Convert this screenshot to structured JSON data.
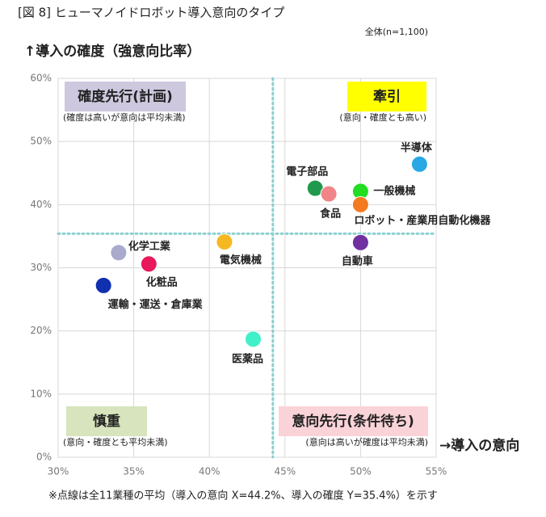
{
  "chart_data": {
    "type": "scatter",
    "title": "[図 8] ヒューマノイドロボット導入意向のタイプ",
    "subtitle": "全体(n=1,100)",
    "y_label": "↑導入の確度（強意向比率）",
    "x_label": "→導入の意向",
    "footnote": "※点線は全11業種の平均（導入の意向 X=44.2%、導入の確度 Y=35.4%）を示す",
    "mean_x": 44.2,
    "mean_y": 35.4,
    "categories": [
      "半導体",
      "電子部品",
      "食品",
      "一般機械",
      "ロボット・産業用自動化機器",
      "自動車",
      "電気機械",
      "化学工業",
      "化粧品",
      "運輸・運送・倉庫業",
      "医薬品"
    ],
    "x": [
      53.9,
      47.0,
      47.9,
      50.0,
      50.0,
      50.0,
      41.0,
      34.0,
      36.0,
      33.0,
      42.9
    ],
    "values": [
      46.4,
      42.6,
      41.7,
      42.1,
      40.0,
      34.0,
      34.1,
      32.4,
      30.6,
      27.2,
      18.7
    ],
    "colors": [
      "#29a8e6",
      "#1f9a4c",
      "#f08488",
      "#22dd22",
      "#f47a20",
      "#7030a0",
      "#f5b820",
      "#aaaacc",
      "#e8185a",
      "#1030b0",
      "#40f0c8"
    ],
    "quadrants": [
      {
        "label": "確度先行(計画)",
        "note": "(確度は高いが意向は平均未満)",
        "color": "#cdc8de"
      },
      {
        "label": "牽引",
        "note": "(意向・確度とも高い)",
        "color": "#ffff00"
      },
      {
        "label": "慎重",
        "note": "(意向・確度とも平均未満)",
        "color": "#d7e4bd"
      },
      {
        "label": "意向先行(条件待ち)",
        "note": "(意向は高いが確度は平均未満)",
        "color": "#f9d3d8"
      }
    ],
    "xlim": [
      30,
      55
    ],
    "ylim": [
      0,
      60
    ],
    "xticks": [
      {
        "value": 30,
        "label": "30%"
      },
      {
        "value": 35,
        "label": "35%"
      },
      {
        "value": 40,
        "label": "40%"
      },
      {
        "value": 45,
        "label": "45%"
      },
      {
        "value": 50,
        "label": "50%"
      },
      {
        "value": 55,
        "label": "55%"
      }
    ],
    "yticks": [
      {
        "value": 0,
        "label": "0%"
      },
      {
        "value": 10,
        "label": "10%"
      },
      {
        "value": 20,
        "label": "20%"
      },
      {
        "value": 30,
        "label": "30%"
      },
      {
        "value": 40,
        "label": "40%"
      },
      {
        "value": 50,
        "label": "50%"
      },
      {
        "value": 60,
        "label": "60%"
      }
    ],
    "grid": true
  }
}
